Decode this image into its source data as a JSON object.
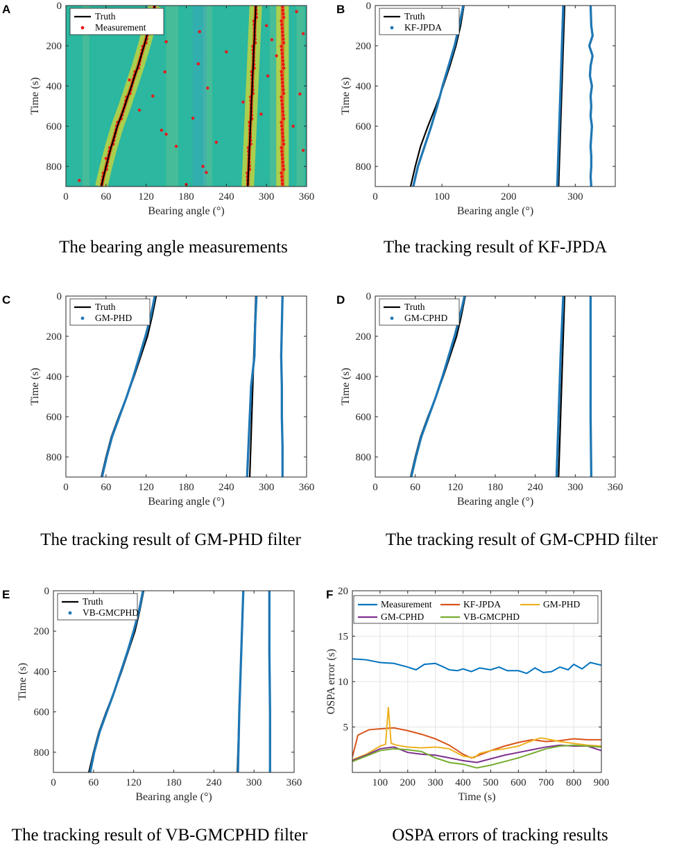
{
  "colors": {
    "truth": "#000000",
    "est": "#1f77b4",
    "meas_dot": "#e8171b",
    "heat_bg": "#2bb7a0",
    "heat_band": "#c8d43a",
    "heat_core": "#e06a1b",
    "measurement": "#0072bd",
    "kfjpda": "#d95319",
    "gmphd": "#edb120",
    "gmcphd": "#7e2f8e",
    "vbgmcphd": "#77ac30",
    "grid": "#e4e4e4"
  },
  "chart_data": [
    {
      "id": "A",
      "panel_label": "A",
      "type": "heatmap",
      "title": "The bearing angle measurements",
      "xlabel": "Bearing angle (°)",
      "ylabel": "Time (s)",
      "xlim": [
        0,
        360
      ],
      "ylim": [
        0,
        900
      ],
      "y_reversed": true,
      "xticks": [
        "0",
        "60",
        "120",
        "180",
        "240",
        "300",
        "360"
      ],
      "yticks": [
        "0",
        "200",
        "400",
        "600",
        "800"
      ],
      "legend": [
        "Truth",
        "Measurement"
      ],
      "legend_position": "top-left",
      "truth_tracks": [
        {
          "time": [
            0,
            100,
            200,
            300,
            400,
            500,
            600,
            700,
            800,
            900
          ],
          "bearing": [
            133,
            125,
            117,
            108,
            98,
            88,
            77,
            68,
            60,
            53
          ]
        },
        {
          "time": [
            0,
            300,
            600,
            900
          ],
          "bearing": [
            284,
            280,
            276,
            272
          ]
        }
      ],
      "measurement_bands": [
        {
          "time": [
            0,
            300,
            600,
            900
          ],
          "bearing": [
            284,
            280,
            276,
            272
          ]
        },
        {
          "time": [
            0,
            900
          ],
          "bearing": [
            324,
            324
          ]
        },
        {
          "time": [
            0,
            100,
            200,
            300,
            400,
            500,
            600,
            700,
            800,
            900
          ],
          "bearing": [
            133,
            125,
            117,
            108,
            98,
            88,
            77,
            68,
            60,
            53
          ]
        }
      ],
      "clutter": [
        {
          "time": 20,
          "bearing": 120
        },
        {
          "time": 60,
          "bearing": 125
        },
        {
          "time": 130,
          "bearing": 200
        },
        {
          "time": 180,
          "bearing": 150
        },
        {
          "time": 230,
          "bearing": 240
        },
        {
          "time": 290,
          "bearing": 198
        },
        {
          "time": 330,
          "bearing": 148
        },
        {
          "time": 370,
          "bearing": 95
        },
        {
          "time": 410,
          "bearing": 212
        },
        {
          "time": 450,
          "bearing": 130
        },
        {
          "time": 480,
          "bearing": 265
        },
        {
          "time": 520,
          "bearing": 110
        },
        {
          "time": 560,
          "bearing": 190
        },
        {
          "time": 600,
          "bearing": 340
        },
        {
          "time": 640,
          "bearing": 150
        },
        {
          "time": 680,
          "bearing": 225
        },
        {
          "time": 720,
          "bearing": 355
        },
        {
          "time": 760,
          "bearing": 60
        },
        {
          "time": 800,
          "bearing": 205
        },
        {
          "time": 830,
          "bearing": 210
        },
        {
          "time": 870,
          "bearing": 20
        },
        {
          "time": 890,
          "bearing": 180
        },
        {
          "time": 100,
          "bearing": 300
        },
        {
          "time": 170,
          "bearing": 308
        },
        {
          "time": 250,
          "bearing": 315
        },
        {
          "time": 350,
          "bearing": 302
        },
        {
          "time": 440,
          "bearing": 350
        },
        {
          "time": 540,
          "bearing": 292
        },
        {
          "time": 30,
          "bearing": 345
        },
        {
          "time": 140,
          "bearing": 355
        },
        {
          "time": 620,
          "bearing": 143
        },
        {
          "time": 700,
          "bearing": 165
        }
      ]
    },
    {
      "id": "B",
      "panel_label": "B",
      "type": "scatter",
      "title": "The tracking result of KF-JPDA",
      "xlabel": "Bearing angle (°)",
      "ylabel": "Time (s)",
      "xlim": [
        0,
        360
      ],
      "ylim": [
        0,
        900
      ],
      "y_reversed": true,
      "xticks": [
        "0",
        "100",
        "200",
        "300"
      ],
      "yticks": [
        "0",
        "200",
        "400",
        "600",
        "800"
      ],
      "legend": [
        "Truth",
        "KF-JPDA"
      ],
      "legend_position": "top-left",
      "truth_tracks": [
        {
          "time": [
            0,
            100,
            200,
            300,
            400,
            500,
            600,
            700,
            800,
            900
          ],
          "bearing": [
            133,
            128,
            121,
            112,
            102,
            91,
            79,
            68,
            60,
            53
          ]
        },
        {
          "time": [
            0,
            300,
            600,
            900
          ],
          "bearing": [
            284,
            281,
            278,
            275
          ]
        }
      ],
      "estimate_tracks": [
        {
          "time": [
            0,
            100,
            200,
            300,
            400,
            500,
            600,
            700,
            800,
            900
          ],
          "bearing": [
            132,
            126,
            119,
            110,
            101,
            93,
            84,
            74,
            64,
            57
          ]
        },
        {
          "time": [
            0,
            300,
            600,
            900
          ],
          "bearing": [
            282,
            279,
            276,
            273
          ]
        },
        {
          "time": [
            0,
            100,
            150,
            200,
            250,
            300,
            350,
            400,
            450,
            500,
            550,
            600,
            650,
            700,
            750,
            800,
            850,
            900
          ],
          "bearing": [
            323,
            324,
            326,
            321,
            326,
            323,
            322,
            325,
            323,
            324,
            323,
            325,
            324,
            323,
            324,
            324,
            323,
            324
          ]
        }
      ]
    },
    {
      "id": "C",
      "panel_label": "C",
      "type": "scatter",
      "title": "The tracking result of GM-PHD filter",
      "xlabel": "Bearing angle (°)",
      "ylabel": "Time (s)",
      "xlim": [
        0,
        360
      ],
      "ylim": [
        0,
        900
      ],
      "y_reversed": true,
      "xticks": [
        "0",
        "60",
        "120",
        "180",
        "240",
        "300",
        "360"
      ],
      "yticks": [
        "0",
        "200",
        "400",
        "600",
        "800"
      ],
      "legend": [
        "Truth",
        "GM-PHD"
      ],
      "legend_position": "top-left",
      "truth_tracks": [
        {
          "time": [
            0,
            100,
            200,
            300,
            400,
            500,
            600,
            700,
            800,
            900
          ],
          "bearing": [
            135,
            129,
            122,
            112,
            102,
            91,
            79,
            68,
            60,
            53
          ]
        },
        {
          "time": [
            0,
            300,
            600,
            900
          ],
          "bearing": [
            284,
            281,
            278,
            275
          ]
        }
      ],
      "estimate_tracks": [
        {
          "time": [
            0,
            100,
            200,
            300,
            400,
            500,
            600,
            700,
            800,
            900
          ],
          "bearing": [
            133,
            127,
            119,
            110,
            101,
            91,
            80,
            69,
            61,
            54
          ]
        },
        {
          "time": [
            0,
            150,
            300,
            450,
            600,
            750,
            900
          ],
          "bearing": [
            285,
            283,
            282,
            277,
            275,
            273,
            271
          ]
        },
        {
          "time": [
            0,
            150,
            300,
            450,
            600,
            750,
            900
          ],
          "bearing": [
            324,
            323,
            322,
            323,
            323,
            324,
            324
          ]
        }
      ]
    },
    {
      "id": "D",
      "panel_label": "D",
      "type": "scatter",
      "title": "The tracking result of GM-CPHD filter",
      "xlabel": "Bearing angle (°)",
      "ylabel": "Time (s)",
      "xlim": [
        0,
        360
      ],
      "ylim": [
        0,
        900
      ],
      "y_reversed": true,
      "xticks": [
        "0",
        "60",
        "120",
        "180",
        "240",
        "300",
        "360"
      ],
      "yticks": [
        "0",
        "200",
        "400",
        "600",
        "800"
      ],
      "legend": [
        "Truth",
        "GM-CPHD"
      ],
      "legend_position": "top-left",
      "truth_tracks": [
        {
          "time": [
            0,
            100,
            200,
            300,
            400,
            500,
            600,
            700,
            800,
            900
          ],
          "bearing": [
            135,
            129,
            122,
            112,
            102,
            91,
            79,
            68,
            60,
            53
          ]
        },
        {
          "time": [
            0,
            300,
            600,
            900
          ],
          "bearing": [
            284,
            281,
            278,
            275
          ]
        }
      ],
      "estimate_tracks": [
        {
          "time": [
            0,
            100,
            200,
            300,
            400,
            500,
            600,
            700,
            800,
            900
          ],
          "bearing": [
            134,
            127,
            119,
            110,
            101,
            91,
            80,
            69,
            61,
            54
          ]
        },
        {
          "time": [
            0,
            300,
            600,
            900
          ],
          "bearing": [
            282,
            278,
            275,
            272
          ]
        },
        {
          "time": [
            0,
            300,
            600,
            900
          ],
          "bearing": [
            323,
            323,
            323,
            324
          ]
        }
      ]
    },
    {
      "id": "E",
      "panel_label": "E",
      "type": "scatter",
      "title": "The tracking result of VB-GMCPHD filter",
      "xlabel": "Bearing angle (°)",
      "ylabel": "Time (s)",
      "xlim": [
        0,
        360
      ],
      "ylim": [
        0,
        900
      ],
      "y_reversed": true,
      "xticks": [
        "0",
        "60",
        "120",
        "180",
        "240",
        "300",
        "360"
      ],
      "yticks": [
        "0",
        "200",
        "400",
        "600",
        "800"
      ],
      "legend": [
        "Truth",
        "VB-GMCPHD"
      ],
      "legend_position": "top-left",
      "truth_tracks": [
        {
          "time": [
            0,
            100,
            200,
            300,
            400,
            500,
            600,
            700,
            800,
            900
          ],
          "bearing": [
            135,
            129,
            122,
            112,
            102,
            91,
            79,
            68,
            60,
            53
          ]
        },
        {
          "time": [
            0,
            300,
            600,
            900
          ],
          "bearing": [
            284,
            281,
            278,
            275
          ]
        }
      ],
      "estimate_tracks": [
        {
          "time": [
            0,
            100,
            200,
            300,
            400,
            500,
            600,
            700,
            800,
            900
          ],
          "bearing": [
            134,
            128,
            120,
            111,
            101,
            91,
            80,
            69,
            61,
            55
          ]
        },
        {
          "time": [
            0,
            300,
            600,
            900
          ],
          "bearing": [
            284,
            281,
            278,
            276
          ]
        },
        {
          "time": [
            0,
            300,
            600,
            900
          ],
          "bearing": [
            323,
            323,
            324,
            324
          ]
        }
      ]
    },
    {
      "id": "F",
      "panel_label": "F",
      "type": "line",
      "title": "OSPA errors of tracking results",
      "xlabel": "Time (s)",
      "ylabel": "OSPA error (s)",
      "xlim": [
        0,
        900
      ],
      "ylim": [
        0,
        20
      ],
      "xticks": [
        "100",
        "200",
        "300",
        "400",
        "500",
        "600",
        "700",
        "800",
        "900"
      ],
      "yticks": [
        "5",
        "10",
        "15",
        "20"
      ],
      "grid": true,
      "legend_position": "top",
      "series": [
        {
          "name": "Measurement",
          "color_key": "measurement",
          "x": [
            0,
            50,
            100,
            150,
            200,
            230,
            260,
            300,
            330,
            350,
            380,
            400,
            430,
            460,
            500,
            530,
            560,
            600,
            630,
            660,
            690,
            720,
            750,
            780,
            800,
            830,
            860,
            900
          ],
          "y": [
            12.5,
            12.4,
            12.1,
            12.0,
            11.6,
            11.3,
            11.9,
            12.0,
            11.6,
            11.3,
            11.2,
            11.4,
            11.1,
            11.5,
            11.3,
            11.6,
            11.2,
            11.2,
            10.9,
            11.5,
            11.0,
            11.1,
            11.6,
            11.3,
            11.9,
            11.4,
            12.1,
            11.8
          ]
        },
        {
          "name": "KF-JPDA",
          "color_key": "kfjpda",
          "x": [
            0,
            20,
            60,
            100,
            150,
            200,
            250,
            300,
            350,
            400,
            430,
            450,
            500,
            550,
            600,
            650,
            700,
            750,
            800,
            850,
            900
          ],
          "y": [
            1.7,
            4.1,
            4.7,
            4.8,
            4.9,
            4.6,
            4.2,
            3.7,
            3.0,
            2.0,
            1.6,
            1.8,
            2.4,
            2.9,
            3.3,
            3.6,
            3.4,
            3.5,
            3.7,
            3.6,
            3.6
          ]
        },
        {
          "name": "GM-PHD",
          "color_key": "gmphd",
          "x": [
            0,
            50,
            100,
            120,
            130,
            140,
            160,
            200,
            250,
            300,
            350,
            400,
            440,
            460,
            500,
            550,
            600,
            650,
            680,
            700,
            750,
            800,
            850,
            900
          ],
          "y": [
            1.4,
            2.0,
            2.9,
            3.1,
            7.2,
            3.2,
            3.0,
            2.8,
            2.7,
            2.8,
            2.6,
            1.8,
            1.6,
            2.1,
            2.4,
            2.6,
            2.9,
            3.5,
            3.8,
            3.7,
            3.4,
            3.2,
            3.0,
            2.9
          ]
        },
        {
          "name": "GM-CPHD",
          "color_key": "gmcphd",
          "x": [
            0,
            50,
            100,
            150,
            200,
            250,
            300,
            350,
            400,
            450,
            500,
            550,
            600,
            650,
            700,
            750,
            800,
            850,
            900
          ],
          "y": [
            1.3,
            1.9,
            2.6,
            2.8,
            2.2,
            2.0,
            1.9,
            1.6,
            1.3,
            1.1,
            1.5,
            1.9,
            2.2,
            2.5,
            2.8,
            3.0,
            2.9,
            2.9,
            2.4
          ]
        },
        {
          "name": "VB-GMCPHD",
          "color_key": "vbgmcphd",
          "x": [
            0,
            50,
            100,
            150,
            200,
            250,
            300,
            350,
            400,
            450,
            500,
            550,
            600,
            650,
            700,
            750,
            800,
            850,
            900
          ],
          "y": [
            1.2,
            1.8,
            2.4,
            2.6,
            2.5,
            2.3,
            1.6,
            1.1,
            0.9,
            0.5,
            0.8,
            1.2,
            1.6,
            2.1,
            2.6,
            2.9,
            3.0,
            2.9,
            2.8
          ]
        }
      ]
    }
  ]
}
